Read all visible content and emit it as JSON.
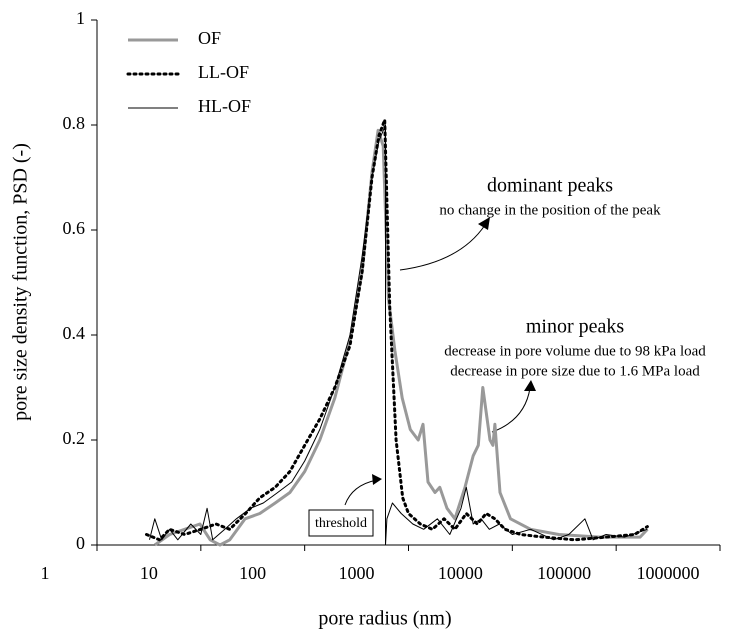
{
  "chart_data": {
    "type": "line",
    "xlabel": "pore radius (nm)",
    "ylabel": "pore size density function, PSD (-)",
    "xscale": "log",
    "xlim": [
      1,
      1000000
    ],
    "xticks": [
      1,
      10,
      100,
      1000,
      10000,
      100000,
      1000000
    ],
    "ylim": [
      0,
      1
    ],
    "yticks": [
      0,
      0.2,
      0.4,
      0.6,
      0.8,
      1
    ],
    "legend": "top-left",
    "annotations": [
      "dominant peaks",
      "no change in the position of the peak",
      "minor peaks",
      "decrease in pore volume due to 98 kPa load",
      "decrease in pore size due to 1.6 MPa load",
      "threshold"
    ],
    "series": [
      {
        "name": "OF",
        "color": "#999999",
        "style": "solid-thick",
        "x": [
          3.6,
          5,
          7,
          9.8,
          12.3,
          15.3,
          19,
          26.7,
          37,
          52,
          72,
          100,
          140,
          195,
          273,
          357,
          445,
          510,
          570,
          640,
          740,
          870,
          1040,
          1240,
          1380,
          1540,
          1800,
          2000,
          2350,
          2800,
          3500,
          4200,
          4700,
          5200,
          6100,
          6500,
          6800,
          7600,
          9600,
          15000,
          28000,
          70000,
          170000,
          200000
        ],
        "values": [
          0,
          0.02,
          0.03,
          0.04,
          0.01,
          0,
          0.01,
          0.05,
          0.06,
          0.08,
          0.1,
          0.14,
          0.2,
          0.28,
          0.39,
          0.52,
          0.71,
          0.79,
          0.76,
          0.47,
          0.37,
          0.28,
          0.22,
          0.2,
          0.23,
          0.12,
          0.1,
          0.11,
          0.07,
          0.05,
          0.11,
          0.17,
          0.19,
          0.3,
          0.2,
          0.19,
          0.23,
          0.1,
          0.05,
          0.03,
          0.02,
          0.015,
          0.015,
          0.03
        ]
      },
      {
        "name": "LL-OF",
        "color": "#000000",
        "style": "dotted",
        "x": [
          3,
          4,
          5,
          7,
          10,
          14,
          19,
          27,
          37,
          52,
          72,
          100,
          140,
          195,
          273,
          357,
          445,
          520,
          590,
          660,
          760,
          880,
          1000,
          1300,
          1700,
          2200,
          2800,
          3600,
          4600,
          5600,
          6800,
          8500,
          12000,
          20000,
          40000,
          80000,
          150000,
          200000
        ],
        "values": [
          0.02,
          0.01,
          0.03,
          0.02,
          0.03,
          0.04,
          0.03,
          0.06,
          0.09,
          0.11,
          0.14,
          0.19,
          0.24,
          0.3,
          0.38,
          0.52,
          0.7,
          0.78,
          0.81,
          0.45,
          0.2,
          0.09,
          0.06,
          0.04,
          0.03,
          0.05,
          0.03,
          0.06,
          0.04,
          0.06,
          0.05,
          0.03,
          0.02,
          0.015,
          0.01,
          0.015,
          0.02,
          0.035
        ]
      },
      {
        "name": "HL-OF",
        "color": "#000000",
        "style": "solid-thin",
        "x": [
          3.2,
          3.6,
          4.2,
          5,
          6,
          8,
          10,
          11.5,
          13,
          17,
          22,
          30,
          40,
          55,
          75,
          100,
          140,
          195,
          273,
          357,
          445,
          520,
          600,
          600,
          620,
          700,
          850,
          1100,
          1400,
          1900,
          2500,
          3200,
          3600,
          4200,
          5000,
          6000,
          7500,
          10000,
          15000,
          25000,
          35000,
          50000,
          60000,
          80000,
          120000,
          200000
        ],
        "values": [
          0.01,
          0.05,
          0.01,
          0.03,
          0.01,
          0.04,
          0.02,
          0.07,
          0.01,
          0.03,
          0.05,
          0.07,
          0.08,
          0.1,
          0.12,
          0.16,
          0.22,
          0.3,
          0.4,
          0.55,
          0.7,
          0.77,
          0.8,
          0,
          0.05,
          0.08,
          0.06,
          0.04,
          0.03,
          0.05,
          0.02,
          0.07,
          0.11,
          0.04,
          0.05,
          0.03,
          0.04,
          0.02,
          0.03,
          0.01,
          0.02,
          0.05,
          0.01,
          0.02,
          0.015,
          0.03
        ]
      }
    ]
  }
}
